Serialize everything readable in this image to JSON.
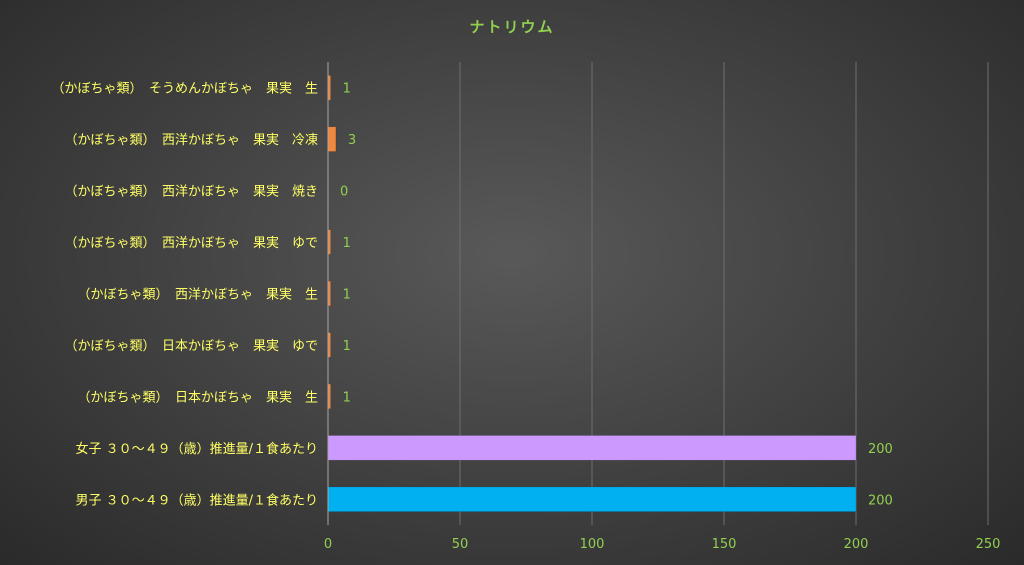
{
  "chart_data": {
    "type": "bar",
    "orientation": "horizontal",
    "title": "ナトリウム",
    "categories": [
      "（かぼちゃ類）　そうめんかぼちゃ　果実　生",
      "（かぼちゃ類）　西洋かぼちゃ　果実　冷凍",
      "（かぼちゃ類）　西洋かぼちゃ　果実　焼き",
      "（かぼちゃ類）　西洋かぼちゃ　果実　ゆで",
      "（かぼちゃ類）　西洋かぼちゃ　果実　生",
      "（かぼちゃ類）　日本かぼちゃ　果実　ゆで",
      "（かぼちゃ類）　日本かぼちゃ　果実　生",
      "女子 ３０～４９（歳）推進量/１食あたり",
      "男子 ３０～４９（歳）推進量/１食あたり"
    ],
    "values": [
      1,
      3,
      0,
      1,
      1,
      1,
      1,
      200,
      200
    ],
    "value_labels": [
      "1",
      "3",
      "0",
      "1",
      "1",
      "1",
      "1",
      "200",
      "200"
    ],
    "bar_colors": [
      "#f0883e",
      "#f0883e",
      "#f0883e",
      "#f0883e",
      "#f0883e",
      "#f0883e",
      "#f0883e",
      "#cc99ff",
      "#00b0f0"
    ],
    "xlim": [
      0,
      250
    ],
    "xticks": [
      0,
      50,
      100,
      150,
      200,
      250
    ],
    "xtick_labels": [
      "0",
      "50",
      "100",
      "150",
      "200",
      "250"
    ],
    "grid": true,
    "legend": "none"
  }
}
